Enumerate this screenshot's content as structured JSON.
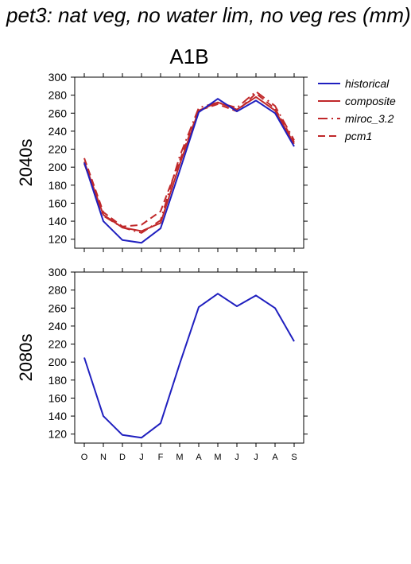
{
  "figure_title": "pet3: nat veg, no water lim, no veg res (mm)",
  "scenario": "A1B",
  "chart_data": [
    {
      "type": "line",
      "panel": "2040s",
      "ylabel": "2040s",
      "categories": [
        "O",
        "N",
        "D",
        "J",
        "F",
        "M",
        "A",
        "M",
        "J",
        "J",
        "A",
        "S"
      ],
      "ylim": [
        110,
        300
      ],
      "yticks": [
        120,
        140,
        160,
        180,
        200,
        220,
        240,
        260,
        280,
        300
      ],
      "legend": "top-right, outside",
      "series": [
        {
          "name": "historical",
          "color": "#1f1fbf",
          "dash": "solid",
          "values": [
            205,
            140,
            119,
            116,
            132,
            196,
            261,
            276,
            262,
            274,
            260,
            223
          ]
        },
        {
          "name": "composite",
          "color": "#c0282a",
          "dash": "solid",
          "values": [
            206,
            147,
            133,
            129,
            138,
            203,
            263,
            272,
            264,
            278,
            263,
            226
          ]
        },
        {
          "name": "miroc_3.2",
          "color": "#c0282a",
          "dash": "dashdot",
          "values": [
            204,
            146,
            133,
            127,
            141,
            212,
            266,
            272,
            266,
            284,
            268,
            230
          ]
        },
        {
          "name": "pcm1",
          "color": "#c0282a",
          "dash": "dash",
          "values": [
            210,
            150,
            134,
            136,
            151,
            207,
            263,
            270,
            262,
            282,
            265,
            228
          ]
        }
      ]
    },
    {
      "type": "line",
      "panel": "2080s",
      "ylabel": "2080s",
      "categories": [
        "O",
        "N",
        "D",
        "J",
        "F",
        "M",
        "A",
        "M",
        "J",
        "J",
        "A",
        "S"
      ],
      "ylim": [
        110,
        300
      ],
      "yticks": [
        120,
        140,
        160,
        180,
        200,
        220,
        240,
        260,
        280,
        300
      ],
      "series": [
        {
          "name": "historical",
          "color": "#1f1fbf",
          "dash": "solid",
          "values": [
            205,
            140,
            119,
            116,
            132,
            198,
            261,
            276,
            262,
            274,
            260,
            223
          ]
        }
      ]
    }
  ]
}
